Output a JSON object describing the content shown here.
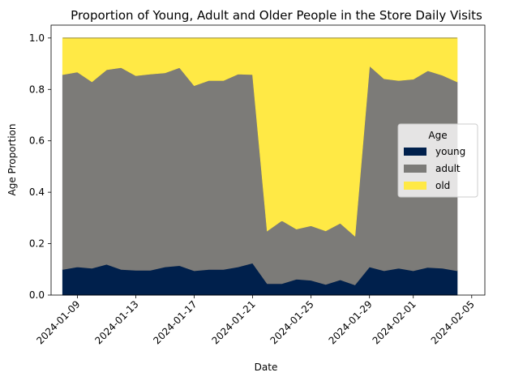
{
  "chart_data": {
    "type": "area",
    "stacked": true,
    "title": "Proportion of Young, Adult and Older People in the Store Daily Visits",
    "xlabel": "Date",
    "ylabel": "Age Proportion",
    "ylim": [
      0,
      1.05
    ],
    "grid": false,
    "legend": {
      "title": "Age",
      "placement": "center-right"
    },
    "x": [
      "2024-01-08",
      "2024-01-09",
      "2024-01-10",
      "2024-01-11",
      "2024-01-12",
      "2024-01-13",
      "2024-01-14",
      "2024-01-15",
      "2024-01-16",
      "2024-01-17",
      "2024-01-18",
      "2024-01-19",
      "2024-01-20",
      "2024-01-21",
      "2024-01-22",
      "2024-01-23",
      "2024-01-24",
      "2024-01-25",
      "2024-01-26",
      "2024-01-27",
      "2024-01-28",
      "2024-01-29",
      "2024-01-30",
      "2024-01-31",
      "2024-02-01",
      "2024-02-02",
      "2024-02-03",
      "2024-02-04"
    ],
    "x_ticks": [
      "2024-01-09",
      "2024-01-13",
      "2024-01-17",
      "2024-01-21",
      "2024-01-25",
      "2024-01-29",
      "2024-02-01",
      "2024-02-05"
    ],
    "y_ticks": [
      "0.0",
      "0.2",
      "0.4",
      "0.6",
      "0.8",
      "1.0"
    ],
    "series": [
      {
        "name": "young",
        "color": "#00204c",
        "values": [
          0.1,
          0.11,
          0.105,
          0.12,
          0.1,
          0.097,
          0.097,
          0.11,
          0.115,
          0.095,
          0.1,
          0.1,
          0.11,
          0.125,
          0.045,
          0.045,
          0.062,
          0.058,
          0.042,
          0.06,
          0.04,
          0.11,
          0.095,
          0.105,
          0.095,
          0.108,
          0.105,
          0.095
        ]
      },
      {
        "name": "adult",
        "color": "#7c7b78",
        "values": [
          0.758,
          0.758,
          0.725,
          0.757,
          0.785,
          0.757,
          0.763,
          0.755,
          0.77,
          0.72,
          0.735,
          0.735,
          0.75,
          0.733,
          0.205,
          0.245,
          0.195,
          0.212,
          0.208,
          0.22,
          0.19,
          0.782,
          0.747,
          0.73,
          0.745,
          0.765,
          0.75,
          0.735
        ]
      },
      {
        "name": "old",
        "color": "#ffe945",
        "values": [
          0.142,
          0.132,
          0.17,
          0.123,
          0.115,
          0.146,
          0.14,
          0.135,
          0.115,
          0.185,
          0.165,
          0.165,
          0.14,
          0.142,
          0.75,
          0.71,
          0.743,
          0.73,
          0.75,
          0.72,
          0.77,
          0.108,
          0.158,
          0.165,
          0.16,
          0.127,
          0.145,
          0.17
        ]
      }
    ]
  }
}
